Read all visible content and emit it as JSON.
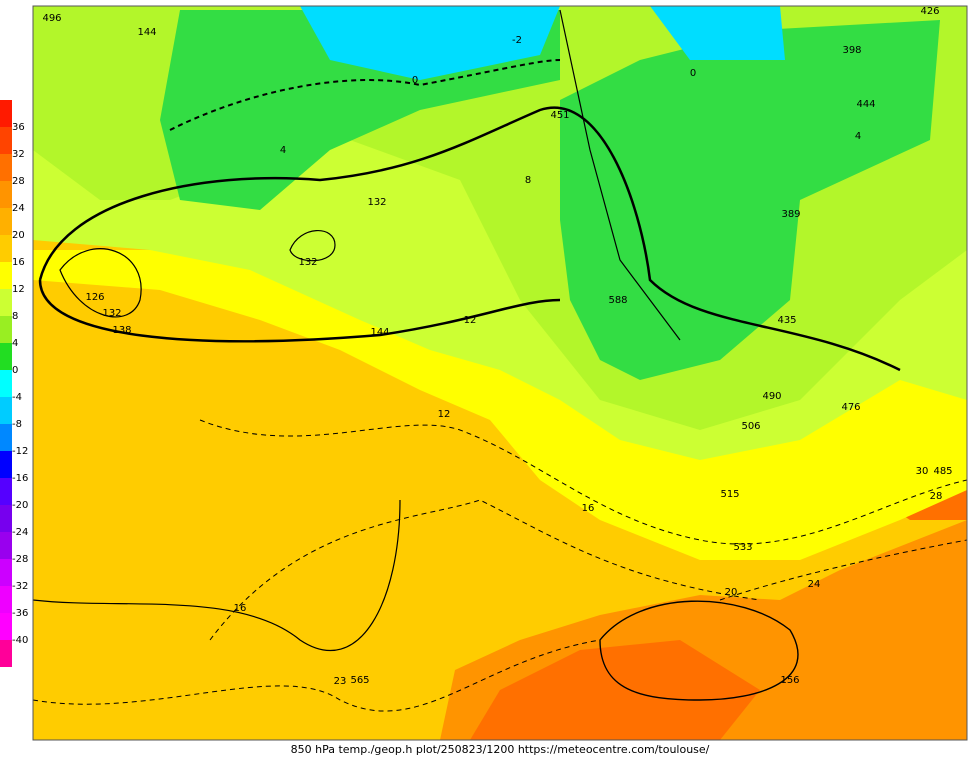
{
  "colorbar": {
    "labels": [
      "36",
      "32",
      "28",
      "24",
      "20",
      "16",
      "12",
      "8",
      "4",
      "0",
      "-4",
      "-8",
      "-12",
      "-16",
      "-20",
      "-24",
      "-28",
      "-32",
      "-36",
      "-40"
    ],
    "colors": [
      "#ff1a00",
      "#ff4400",
      "#ff7000",
      "#ff9400",
      "#ffb000",
      "#ffcc00",
      "#ffff00",
      "#ccff33",
      "#99ee22",
      "#22dd22",
      "#00ffff",
      "#00ccff",
      "#0088ff",
      "#0000ff",
      "#5500ff",
      "#7700ee",
      "#9900ee",
      "#cc00ff",
      "#ee00ff",
      "#ff00ff",
      "#ff0099"
    ]
  },
  "map": {
    "labels": [
      "144",
      "144",
      "138",
      "132",
      "132",
      "126",
      "132",
      "12",
      "16",
      "16",
      "20",
      "24",
      "4",
      "4",
      "0",
      "0",
      "8",
      "12",
      "156",
      "-2",
      "451",
      "588",
      "435",
      "485",
      "565",
      "496",
      "426",
      "398",
      "444",
      "389",
      "515",
      "533",
      "506",
      "490",
      "476",
      "30",
      "28",
      "23"
    ]
  },
  "caption": "850 hPa temp./geop.h plot/250823/1200 https://meteocentre.com/toulouse/"
}
